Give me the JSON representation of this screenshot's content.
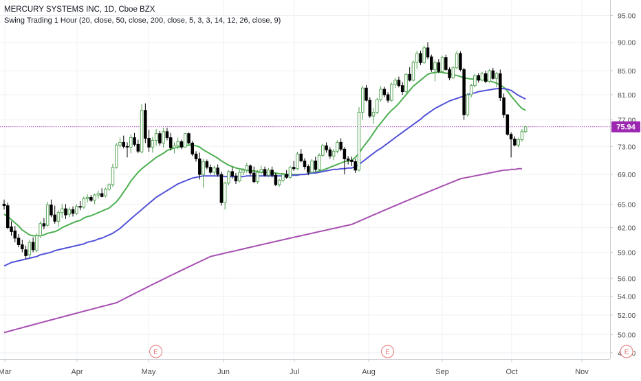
{
  "chart_data": {
    "type": "candlestick",
    "title": "MERCURY SYSTEMS INC, 1D, Cboe BZX",
    "subtitle": "Swing Trading 1 Hour (20, close, 50, close, 200, close, 5, 3, 3, 14, 12, 26, close, 9)",
    "y_ticks": [
      "95.00",
      "90.00",
      "85.00",
      "81.00",
      "77.00",
      "73.00",
      "69.00",
      "65.00",
      "62.00",
      "59.00",
      "56.00",
      "54.00",
      "52.00",
      "50.00",
      "48.20"
    ],
    "y_scale": "log",
    "ylim": [
      47.6,
      98.0
    ],
    "x_ticks": [
      "Mar",
      "Apr",
      "May",
      "Jun",
      "Jul",
      "Aug",
      "Sep",
      "Oct",
      "Nov"
    ],
    "last_price_label": "75.94",
    "last_price": 75.94,
    "earnings_marker_label": "E",
    "earnings_markers_after_bar": [
      40,
      104,
      170
    ],
    "colors": {
      "up": "#4c9e4c",
      "down": "#000000",
      "ma20": "#4caf50",
      "ma50": "#5151d8",
      "ma200": "#a64fb0",
      "price_line": "#9c27b0",
      "price_badge": "#9c27b0",
      "earnings": "#e57373",
      "grid": "#eef0f3",
      "axis_text": "#4a4a4a"
    },
    "candles": [
      [
        65.0,
        65.6,
        64.3,
        64.8
      ],
      [
        64.8,
        65.2,
        61.8,
        62.0
      ],
      [
        62.1,
        62.8,
        61.0,
        61.5
      ],
      [
        61.6,
        62.2,
        60.2,
        60.7
      ],
      [
        60.7,
        61.2,
        59.6,
        59.9
      ],
      [
        59.9,
        60.5,
        59.0,
        59.4
      ],
      [
        59.3,
        59.8,
        58.2,
        58.6
      ],
      [
        58.7,
        60.5,
        58.4,
        60.2
      ],
      [
        60.2,
        60.8,
        59.0,
        59.3
      ],
      [
        59.2,
        61.3,
        59.0,
        61.0
      ],
      [
        61.0,
        62.8,
        60.7,
        62.5
      ],
      [
        62.5,
        63.2,
        61.8,
        62.2
      ],
      [
        62.3,
        65.3,
        62.1,
        64.9
      ],
      [
        64.9,
        65.6,
        63.3,
        63.6
      ],
      [
        63.6,
        64.8,
        62.5,
        62.8
      ],
      [
        62.8,
        64.2,
        62.1,
        63.9
      ],
      [
        63.9,
        65.0,
        63.2,
        64.4
      ],
      [
        64.4,
        65.0,
        63.1,
        63.6
      ],
      [
        63.7,
        64.6,
        63.3,
        64.3
      ],
      [
        64.3,
        64.7,
        63.4,
        63.8
      ],
      [
        63.8,
        65.0,
        63.6,
        64.7
      ],
      [
        64.7,
        65.4,
        64.2,
        64.6
      ],
      [
        64.6,
        66.0,
        64.4,
        65.7
      ],
      [
        65.7,
        66.3,
        65.2,
        65.9
      ],
      [
        65.9,
        66.2,
        65.3,
        65.5
      ],
      [
        65.5,
        66.4,
        65.0,
        66.2
      ],
      [
        66.2,
        66.8,
        65.7,
        66.4
      ],
      [
        66.4,
        67.1,
        65.9,
        66.0
      ],
      [
        66.1,
        67.2,
        65.9,
        67.0
      ],
      [
        67.0,
        67.8,
        66.8,
        67.6
      ],
      [
        67.6,
        70.5,
        67.3,
        70.0
      ],
      [
        70.0,
        73.5,
        69.8,
        73.2
      ],
      [
        73.2,
        74.3,
        72.8,
        73.6
      ],
      [
        73.6,
        74.6,
        72.7,
        73.0
      ],
      [
        73.0,
        73.6,
        71.4,
        72.9
      ],
      [
        72.9,
        74.8,
        72.0,
        74.3
      ],
      [
        74.3,
        75.0,
        73.0,
        73.3
      ],
      [
        73.3,
        74.0,
        72.0,
        72.3
      ],
      [
        72.2,
        79.5,
        72.0,
        78.5
      ],
      [
        78.5,
        79.6,
        73.5,
        74.2
      ],
      [
        74.2,
        75.5,
        72.2,
        72.9
      ],
      [
        72.9,
        74.4,
        72.1,
        73.9
      ],
      [
        73.9,
        75.6,
        73.1,
        74.9
      ],
      [
        74.9,
        75.3,
        73.1,
        73.5
      ],
      [
        73.5,
        75.8,
        72.8,
        75.2
      ],
      [
        75.2,
        75.8,
        73.9,
        74.3
      ],
      [
        74.3,
        75.0,
        72.4,
        72.8
      ],
      [
        72.8,
        73.6,
        72.0,
        73.1
      ],
      [
        73.1,
        74.3,
        72.6,
        73.7
      ],
      [
        73.7,
        74.0,
        72.6,
        72.9
      ],
      [
        72.9,
        75.0,
        72.8,
        74.9
      ],
      [
        74.9,
        75.1,
        73.3,
        73.5
      ],
      [
        73.5,
        73.8,
        71.6,
        71.9
      ],
      [
        71.9,
        72.3,
        70.8,
        71.2
      ],
      [
        71.2,
        72.1,
        68.3,
        69.0
      ],
      [
        69.0,
        71.2,
        67.2,
        70.8
      ],
      [
        70.8,
        71.1,
        69.7,
        70.0
      ],
      [
        70.0,
        70.4,
        69.0,
        69.3
      ],
      [
        69.3,
        70.2,
        68.8,
        69.9
      ],
      [
        69.9,
        70.4,
        68.7,
        69.0
      ],
      [
        69.0,
        69.4,
        64.8,
        65.2
      ],
      [
        65.2,
        68.0,
        64.3,
        67.8
      ],
      [
        67.8,
        69.6,
        67.5,
        69.4
      ],
      [
        69.4,
        70.0,
        68.4,
        68.8
      ],
      [
        68.8,
        69.2,
        67.7,
        68.1
      ],
      [
        68.1,
        69.7,
        67.9,
        69.3
      ],
      [
        69.3,
        69.9,
        68.9,
        69.6
      ],
      [
        69.6,
        70.6,
        69.2,
        70.2
      ],
      [
        70.2,
        70.4,
        68.9,
        69.2
      ],
      [
        69.2,
        70.1,
        67.8,
        68.0
      ],
      [
        68.0,
        69.6,
        67.7,
        69.3
      ],
      [
        69.3,
        70.2,
        69.0,
        69.7
      ],
      [
        69.7,
        70.1,
        68.7,
        68.9
      ],
      [
        68.9,
        69.9,
        68.6,
        69.6
      ],
      [
        69.6,
        70.1,
        68.6,
        68.9
      ],
      [
        68.9,
        69.2,
        67.4,
        67.6
      ],
      [
        67.6,
        68.4,
        67.3,
        68.2
      ],
      [
        68.2,
        69.2,
        67.9,
        69.0
      ],
      [
        69.0,
        69.6,
        68.4,
        68.6
      ],
      [
        68.6,
        70.2,
        68.4,
        70.0
      ],
      [
        70.0,
        70.9,
        69.5,
        69.8
      ],
      [
        69.8,
        72.2,
        69.6,
        71.9
      ],
      [
        71.9,
        72.6,
        70.7,
        70.9
      ],
      [
        70.9,
        71.3,
        69.7,
        70.1
      ],
      [
        70.1,
        70.4,
        68.9,
        69.3
      ],
      [
        69.3,
        71.2,
        69.1,
        70.9
      ],
      [
        70.9,
        71.5,
        69.4,
        69.7
      ],
      [
        69.7,
        72.0,
        69.5,
        71.7
      ],
      [
        71.7,
        73.4,
        71.5,
        73.1
      ],
      [
        73.1,
        73.6,
        72.1,
        72.5
      ],
      [
        72.5,
        72.9,
        71.2,
        71.6
      ],
      [
        71.6,
        72.6,
        71.0,
        72.3
      ],
      [
        72.3,
        73.9,
        72.0,
        73.6
      ],
      [
        73.6,
        74.2,
        72.3,
        72.6
      ],
      [
        72.6,
        72.9,
        69.0,
        71.2
      ],
      [
        71.2,
        71.6,
        70.4,
        71.0
      ],
      [
        71.0,
        71.5,
        70.2,
        70.8
      ],
      [
        70.8,
        71.2,
        69.2,
        69.6
      ],
      [
        69.6,
        79.0,
        69.4,
        78.2
      ],
      [
        78.2,
        82.5,
        77.0,
        82.1
      ],
      [
        82.1,
        82.6,
        79.9,
        80.1
      ],
      [
        80.1,
        80.6,
        77.3,
        77.6
      ],
      [
        77.6,
        78.9,
        76.4,
        78.2
      ],
      [
        78.2,
        80.5,
        77.9,
        80.2
      ],
      [
        80.2,
        82.4,
        79.9,
        81.9
      ],
      [
        81.9,
        82.3,
        80.6,
        81.0
      ],
      [
        81.0,
        81.4,
        79.7,
        80.1
      ],
      [
        80.1,
        83.0,
        79.9,
        82.7
      ],
      [
        82.7,
        83.8,
        82.1,
        83.4
      ],
      [
        83.4,
        84.0,
        82.2,
        82.5
      ],
      [
        82.5,
        83.1,
        81.0,
        81.5
      ],
      [
        81.5,
        84.6,
        81.2,
        84.4
      ],
      [
        84.4,
        85.6,
        83.2,
        83.4
      ],
      [
        83.4,
        86.8,
        83.2,
        86.5
      ],
      [
        86.5,
        88.5,
        85.3,
        88.0
      ],
      [
        88.0,
        88.5,
        86.0,
        86.4
      ],
      [
        86.4,
        89.4,
        86.2,
        89.0
      ],
      [
        89.0,
        90.0,
        87.0,
        87.4
      ],
      [
        87.4,
        87.8,
        84.8,
        85.2
      ],
      [
        85.2,
        86.8,
        83.2,
        86.4
      ],
      [
        86.4,
        87.0,
        84.6,
        84.9
      ],
      [
        84.9,
        87.6,
        84.7,
        87.3
      ],
      [
        87.3,
        87.8,
        85.0,
        85.2
      ],
      [
        85.2,
        85.6,
        83.4,
        83.8
      ],
      [
        83.8,
        85.8,
        83.6,
        85.5
      ],
      [
        85.5,
        88.5,
        85.3,
        88.0
      ],
      [
        88.0,
        88.4,
        84.9,
        85.2
      ],
      [
        85.2,
        85.5,
        77.0,
        77.8
      ],
      [
        77.8,
        81.3,
        77.5,
        81.0
      ],
      [
        81.0,
        82.8,
        80.6,
        82.5
      ],
      [
        82.5,
        84.5,
        82.2,
        84.2
      ],
      [
        84.2,
        84.6,
        83.0,
        83.4
      ],
      [
        83.4,
        84.8,
        83.2,
        84.5
      ],
      [
        84.5,
        85.0,
        82.9,
        83.2
      ],
      [
        83.2,
        85.3,
        83.0,
        85.0
      ],
      [
        85.0,
        85.5,
        83.5,
        83.7
      ],
      [
        83.7,
        84.8,
        82.2,
        84.5
      ],
      [
        84.5,
        85.2,
        80.0,
        80.5
      ],
      [
        80.5,
        81.2,
        77.3,
        77.8
      ],
      [
        77.8,
        77.9,
        74.6,
        74.8
      ],
      [
        74.8,
        75.1,
        71.4,
        74.1
      ],
      [
        74.1,
        74.5,
        73.0,
        73.2
      ],
      [
        73.2,
        74.3,
        72.8,
        74.0
      ],
      [
        74.0,
        75.6,
        73.7,
        75.2
      ],
      [
        75.2,
        76.1,
        75.0,
        75.94
      ]
    ],
    "series": [
      {
        "name": "",
        "kind": "ma20",
        "values": [
          63.7,
          63.4,
          63.0,
          62.6,
          62.2,
          61.7,
          61.4,
          61.1,
          61.0,
          61.0,
          61.0,
          61.1,
          61.3,
          61.4,
          61.5,
          61.7,
          62.0,
          62.2,
          62.4,
          62.6,
          62.8,
          62.9,
          63.2,
          63.4,
          63.5,
          63.7,
          63.9,
          64.1,
          64.3,
          64.5,
          64.9,
          65.3,
          65.9,
          66.6,
          67.3,
          68.1,
          68.7,
          69.3,
          69.8,
          70.2,
          70.6,
          71.0,
          71.4,
          71.7,
          72.0,
          72.4,
          72.6,
          72.8,
          72.9,
          73.0,
          73.1,
          73.2,
          73.2,
          73.1,
          72.9,
          72.5,
          72.2,
          71.9,
          71.6,
          71.3,
          70.9,
          70.6,
          70.3,
          70.1,
          69.9,
          69.8,
          69.7,
          69.6,
          69.5,
          69.5,
          69.4,
          69.3,
          69.3,
          69.3,
          69.2,
          69.2,
          69.1,
          69.1,
          69.0,
          69.0,
          69.0,
          69.0,
          69.0,
          69.0,
          69.1,
          69.2,
          69.3,
          69.5,
          69.6,
          69.8,
          70.0,
          70.2,
          70.4,
          70.6,
          70.8,
          70.9,
          71.0,
          71.4,
          72.0,
          72.8,
          73.5,
          74.2,
          75.0,
          75.8,
          76.5,
          77.2,
          77.9,
          78.5,
          79.0,
          79.6,
          80.3,
          81.0,
          81.7,
          82.4,
          82.9,
          83.4,
          83.9,
          84.4,
          84.6,
          84.7,
          84.8,
          84.7,
          84.6,
          84.5,
          84.3,
          84.2,
          84.0,
          83.8,
          83.7,
          83.6,
          83.6,
          83.6,
          83.5,
          83.4,
          83.3,
          83.1,
          82.9,
          82.6,
          82.2,
          81.6,
          80.8,
          80.1,
          79.4,
          78.8,
          78.5
        ]
      },
      {
        "name": "",
        "kind": "ma50",
        "values": [
          57.4,
          57.6,
          57.8,
          57.9,
          58.0,
          58.1,
          58.2,
          58.3,
          58.4,
          58.5,
          58.7,
          58.8,
          58.9,
          59.0,
          59.2,
          59.3,
          59.4,
          59.5,
          59.6,
          59.7,
          59.8,
          59.9,
          60.0,
          60.2,
          60.3,
          60.4,
          60.6,
          60.7,
          60.9,
          61.1,
          61.3,
          61.6,
          61.9,
          62.3,
          62.7,
          63.1,
          63.5,
          63.9,
          64.3,
          64.7,
          65.1,
          65.5,
          65.9,
          66.2,
          66.5,
          66.8,
          67.1,
          67.4,
          67.7,
          67.9,
          68.1,
          68.3,
          68.5,
          68.6,
          68.7,
          68.8,
          68.8,
          68.8,
          68.8,
          68.8,
          68.8,
          68.7,
          68.7,
          68.7,
          68.7,
          68.7,
          68.7,
          68.8,
          68.8,
          68.8,
          68.8,
          68.8,
          68.8,
          68.8,
          68.8,
          68.8,
          68.8,
          68.8,
          68.8,
          68.9,
          68.9,
          68.9,
          69.0,
          69.0,
          69.1,
          69.2,
          69.2,
          69.3,
          69.4,
          69.5,
          69.6,
          69.7,
          69.7,
          69.8,
          69.8,
          69.9,
          69.9,
          70.1,
          70.4,
          70.8,
          71.2,
          71.6,
          72.0,
          72.4,
          72.7,
          73.1,
          73.5,
          73.9,
          74.3,
          74.7,
          75.1,
          75.5,
          75.9,
          76.3,
          76.7,
          77.1,
          77.6,
          78.0,
          78.4,
          78.8,
          79.1,
          79.4,
          79.7,
          80.0,
          80.2,
          80.4,
          80.6,
          80.8,
          81.0,
          81.2,
          81.3,
          81.5,
          81.6,
          81.7,
          81.8,
          81.9,
          82.0,
          82.0,
          82.0,
          81.9,
          81.7,
          81.3,
          80.9,
          80.6,
          80.3
        ]
      },
      {
        "name": "",
        "kind": "ma200",
        "values": [
          50.2,
          50.3,
          50.4,
          50.5,
          50.6,
          50.7,
          50.8,
          50.9,
          51.0,
          51.1,
          51.2,
          51.3,
          51.4,
          51.5,
          51.6,
          51.7,
          51.8,
          51.9,
          52.0,
          52.1,
          52.2,
          52.3,
          52.4,
          52.5,
          52.6,
          52.7,
          52.8,
          52.9,
          53.0,
          53.1,
          53.2,
          53.3,
          53.5,
          53.7,
          53.9,
          54.1,
          54.3,
          54.5,
          54.7,
          54.9,
          55.1,
          55.3,
          55.5,
          55.7,
          55.9,
          56.1,
          56.3,
          56.5,
          56.7,
          56.9,
          57.1,
          57.3,
          57.5,
          57.7,
          57.9,
          58.1,
          58.3,
          58.5,
          58.6,
          58.7,
          58.8,
          58.9,
          59.0,
          59.1,
          59.2,
          59.3,
          59.4,
          59.5,
          59.6,
          59.7,
          59.8,
          59.9,
          60.0,
          60.1,
          60.2,
          60.3,
          60.4,
          60.5,
          60.6,
          60.7,
          60.8,
          60.9,
          61.0,
          61.1,
          61.2,
          61.3,
          61.4,
          61.5,
          61.6,
          61.7,
          61.8,
          61.9,
          62.0,
          62.1,
          62.2,
          62.3,
          62.4,
          62.6,
          62.8,
          63.0,
          63.2,
          63.4,
          63.6,
          63.8,
          64.0,
          64.2,
          64.4,
          64.6,
          64.8,
          65.0,
          65.2,
          65.4,
          65.6,
          65.8,
          66.0,
          66.2,
          66.4,
          66.6,
          66.8,
          67.0,
          67.2,
          67.4,
          67.6,
          67.8,
          68.0,
          68.2,
          68.4,
          68.5,
          68.6,
          68.7,
          68.8,
          68.9,
          69.0,
          69.1,
          69.2,
          69.3,
          69.4,
          69.5,
          69.6,
          69.6,
          69.7,
          69.7,
          69.8,
          69.8
        ]
      }
    ]
  }
}
